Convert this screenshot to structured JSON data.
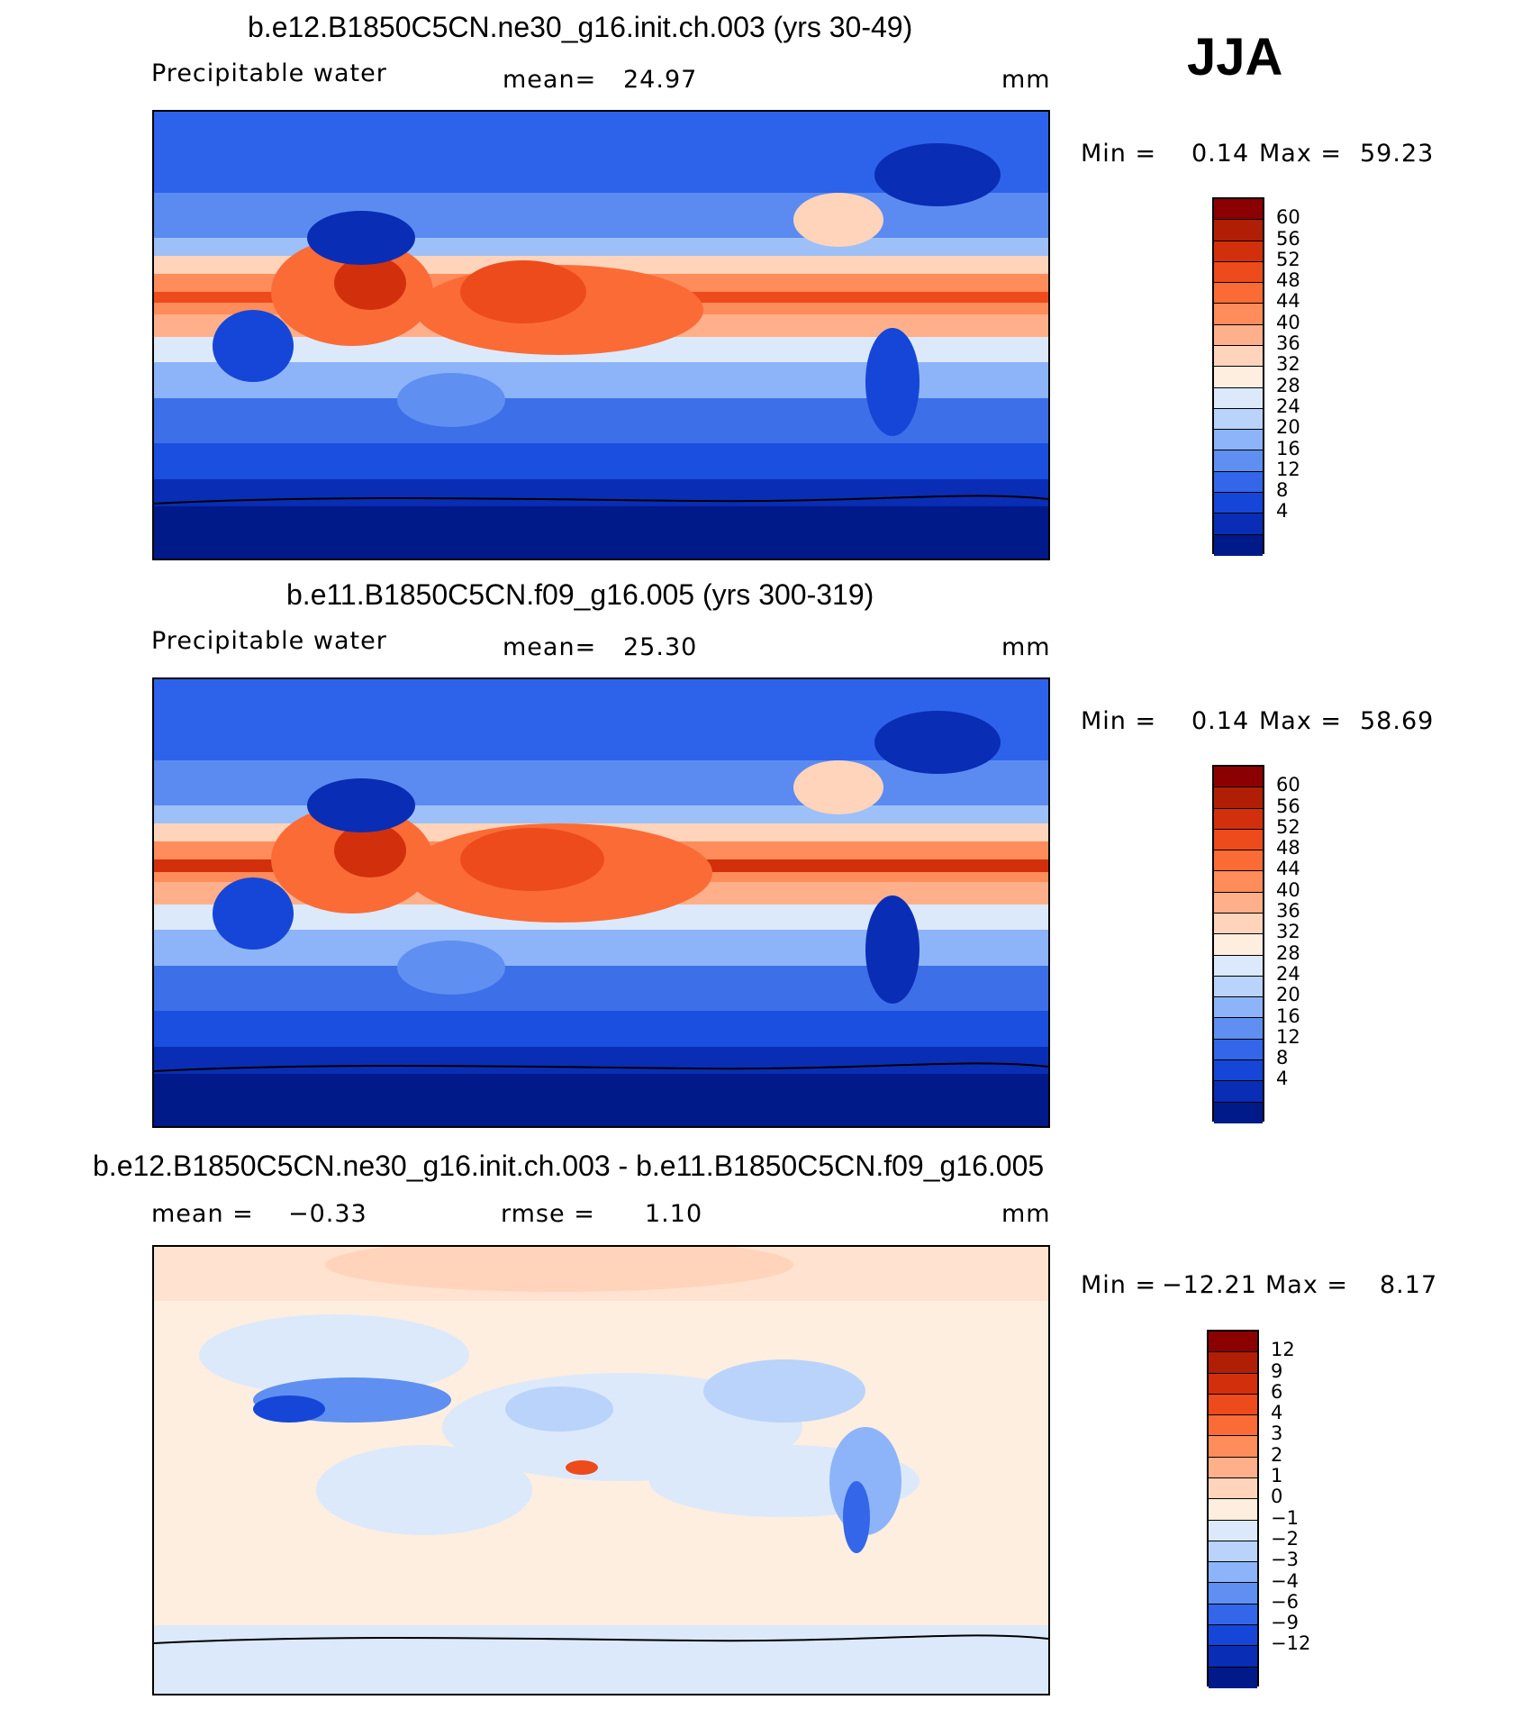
{
  "season": "JJA",
  "panels": [
    {
      "title": "b.e12.B1850C5CN.ne30_g16.init.ch.003 (yrs 30-49)",
      "variable": "Precipitable water",
      "stat1_label": "mean=",
      "stat1_value": "24.97",
      "units": "mm",
      "min_label": "Min =",
      "min_value": "0.14",
      "max_label": "Max =",
      "max_value": "59.23"
    },
    {
      "title": "b.e11.B1850C5CN.f09_g16.005 (yrs 300-319)",
      "variable": "Precipitable water",
      "stat1_label": "mean=",
      "stat1_value": "25.30",
      "units": "mm",
      "min_label": "Min =",
      "min_value": "0.14",
      "max_label": "Max =",
      "max_value": "58.69"
    },
    {
      "title": "b.e12.B1850C5CN.ne30_g16.init.ch.003 - b.e11.B1850C5CN.f09_g16.005",
      "stat1_label": "mean =",
      "stat1_value": "−0.33",
      "stat2_label": "rmse =",
      "stat2_value": "1.10",
      "units": "mm",
      "min_label": "Min =",
      "min_value": "−12.21",
      "max_label": "Max =",
      "max_value": "8.17"
    }
  ],
  "colorbars": {
    "abs": {
      "labels": [
        "60",
        "56",
        "52",
        "48",
        "44",
        "40",
        "36",
        "32",
        "28",
        "24",
        "20",
        "16",
        "12",
        "8",
        "4"
      ],
      "colors": [
        "#8b0000",
        "#b11e06",
        "#d2300c",
        "#ed4b1c",
        "#fb6b36",
        "#ff8c5a",
        "#ffb08a",
        "#ffd4bb",
        "#fdeee0",
        "#dbe9fb",
        "#b9d3fb",
        "#8db4f8",
        "#5f8ff0",
        "#3366e8",
        "#1646d8",
        "#0a2db5",
        "#001a8a"
      ]
    },
    "diff": {
      "labels": [
        "12",
        "9",
        "6",
        "4",
        "3",
        "2",
        "1",
        "0",
        "−1",
        "−2",
        "−3",
        "−4",
        "−6",
        "−9",
        "−12"
      ],
      "colors": [
        "#8b0000",
        "#b11e06",
        "#d2300c",
        "#ed4b1c",
        "#fb6b36",
        "#ff8c5a",
        "#ffb08a",
        "#ffd4bb",
        "#fdeee0",
        "#dbe9fb",
        "#b9d3fb",
        "#8db4f8",
        "#5f8ff0",
        "#3366e8",
        "#1646d8",
        "#0a2db5",
        "#001a8a"
      ]
    }
  },
  "chart_data": [
    {
      "type": "heatmap",
      "title": "b.e12.B1850C5CN.ne30_g16.init.ch.003 (yrs 30-49)",
      "variable": "Precipitable water",
      "units": "mm",
      "mean": 24.97,
      "min": 0.14,
      "max": 59.23,
      "contour_levels": [
        4,
        8,
        12,
        16,
        20,
        24,
        28,
        32,
        36,
        40,
        44,
        48,
        52,
        56,
        60
      ]
    },
    {
      "type": "heatmap",
      "title": "b.e11.B1850C5CN.f09_g16.005 (yrs 300-319)",
      "variable": "Precipitable water",
      "units": "mm",
      "mean": 25.3,
      "min": 0.14,
      "max": 58.69,
      "contour_levels": [
        4,
        8,
        12,
        16,
        20,
        24,
        28,
        32,
        36,
        40,
        44,
        48,
        52,
        56,
        60
      ]
    },
    {
      "type": "heatmap",
      "title": "b.e12.B1850C5CN.ne30_g16.init.ch.003 - b.e11.B1850C5CN.f09_g16.005",
      "units": "mm",
      "mean": -0.33,
      "rmse": 1.1,
      "min": -12.21,
      "max": 8.17,
      "contour_levels": [
        -12,
        -9,
        -6,
        -4,
        -3,
        -2,
        -1,
        0,
        1,
        2,
        3,
        4,
        6,
        9,
        12
      ]
    }
  ]
}
